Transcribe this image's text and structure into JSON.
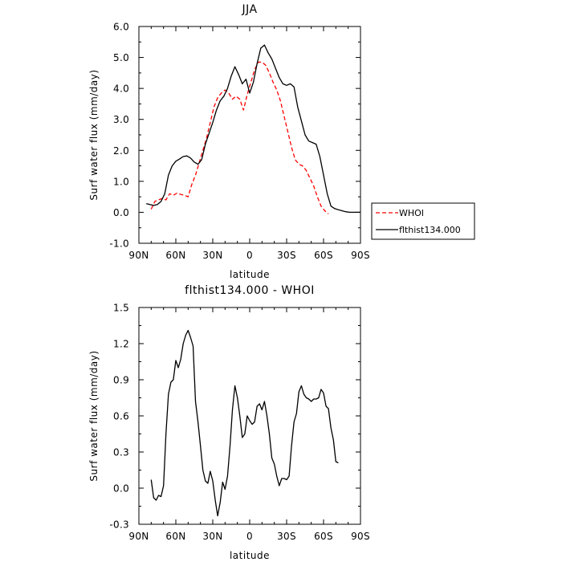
{
  "chart_data": [
    {
      "type": "line",
      "title": "JJA",
      "xlabel": "latitude",
      "ylabel": "Surf water flux (mm/day)",
      "xlim": [
        90,
        -90
      ],
      "ylim": [
        -1.0,
        6.0
      ],
      "xticks": [
        90,
        60,
        30,
        0,
        -30,
        -60,
        -90
      ],
      "xtick_labels": [
        "90N",
        "60N",
        "30N",
        "0",
        "30S",
        "60S",
        "90S"
      ],
      "yticks": [
        -1.0,
        0.0,
        1.0,
        2.0,
        3.0,
        4.0,
        5.0,
        6.0
      ],
      "ytick_labels": [
        "-1.0",
        "0.0",
        "1.0",
        "2.0",
        "3.0",
        "4.0",
        "5.0",
        "6.0"
      ],
      "grid": false,
      "legend_position": "right",
      "series": [
        {
          "name": "WHOI",
          "color": "#ff0000",
          "style": "dashed",
          "x": [
            80,
            77,
            74,
            71,
            68,
            65,
            62,
            59,
            56,
            53,
            50,
            47,
            44,
            41,
            38,
            35,
            32,
            29,
            26,
            23,
            20,
            17,
            14,
            11,
            8,
            5,
            2,
            -1,
            -4,
            -7,
            -10,
            -13,
            -16,
            -19,
            -22,
            -25,
            -28,
            -31,
            -34,
            -37,
            -40,
            -43,
            -46,
            -49,
            -52,
            -55,
            -58,
            -61,
            -64,
            -67,
            -70,
            -73
          ],
          "y": [
            0.1,
            0.35,
            0.4,
            0.45,
            0.4,
            0.6,
            0.55,
            0.62,
            0.58,
            0.55,
            0.5,
            0.9,
            1.2,
            1.6,
            2.0,
            2.4,
            2.9,
            3.4,
            3.7,
            3.85,
            3.95,
            3.85,
            3.65,
            3.75,
            3.65,
            3.3,
            3.8,
            4.2,
            4.6,
            4.85,
            4.85,
            4.75,
            4.5,
            4.2,
            3.95,
            3.6,
            3.1,
            2.6,
            2.1,
            1.7,
            1.55,
            1.5,
            1.35,
            1.1,
            0.85,
            0.5,
            0.2,
            0.05,
            -0.05,
            null,
            null,
            null
          ]
        },
        {
          "name": "flthist134.000",
          "color": "#000000",
          "style": "solid",
          "x": [
            84,
            81,
            78,
            75,
            72,
            69,
            66,
            63,
            60,
            57,
            54,
            51,
            48,
            45,
            42,
            39,
            36,
            33,
            30,
            27,
            24,
            21,
            18,
            15,
            12,
            9,
            6,
            3,
            0,
            -3,
            -6,
            -9,
            -12,
            -15,
            -18,
            -21,
            -24,
            -27,
            -30,
            -33,
            -36,
            -39,
            -42,
            -45,
            -48,
            -51,
            -54,
            -57,
            -60,
            -63,
            -66,
            -69,
            -72,
            -75,
            -78,
            -81,
            -84,
            -87,
            -90
          ],
          "y": [
            0.28,
            0.25,
            0.22,
            0.25,
            0.35,
            0.6,
            1.2,
            1.5,
            1.65,
            1.72,
            1.8,
            1.82,
            1.75,
            1.62,
            1.55,
            1.7,
            2.2,
            2.55,
            2.9,
            3.3,
            3.6,
            3.75,
            4.0,
            4.4,
            4.7,
            4.45,
            4.15,
            4.3,
            3.85,
            4.2,
            4.8,
            5.3,
            5.4,
            5.15,
            4.95,
            4.65,
            4.35,
            4.15,
            4.1,
            4.15,
            4.05,
            3.4,
            2.95,
            2.5,
            2.3,
            2.25,
            2.2,
            1.8,
            1.2,
            0.6,
            0.2,
            0.12,
            0.08,
            0.05,
            0.02,
            0.0,
            0.0,
            0.0,
            0.0
          ]
        }
      ]
    },
    {
      "type": "line",
      "title": "flthist134.000 - WHOI",
      "xlabel": "latitude",
      "ylabel": "Surf water flux (mm/day)",
      "xlim": [
        90,
        -90
      ],
      "ylim": [
        -0.3,
        1.5
      ],
      "xticks": [
        90,
        60,
        30,
        0,
        -30,
        -60,
        -90
      ],
      "xtick_labels": [
        "90N",
        "60N",
        "30N",
        "0",
        "30S",
        "60S",
        "90S"
      ],
      "yticks": [
        -0.3,
        0.0,
        0.3,
        0.6,
        0.9,
        1.2,
        1.5
      ],
      "ytick_labels": [
        "-0.3",
        "0.0",
        "0.3",
        "0.6",
        "0.9",
        "1.2",
        "1.5"
      ],
      "grid": false,
      "series": [
        {
          "color": "#000000",
          "style": "solid",
          "x": [
            80,
            78,
            76,
            74,
            72,
            70,
            68,
            66,
            64,
            62,
            60,
            58,
            56,
            54,
            52,
            50,
            48,
            46,
            44,
            42,
            40,
            38,
            36,
            34,
            32,
            30,
            28,
            26,
            24,
            22,
            20,
            18,
            16,
            14,
            12,
            10,
            8,
            6,
            4,
            2,
            0,
            -2,
            -4,
            -6,
            -8,
            -10,
            -12,
            -14,
            -16,
            -18,
            -20,
            -22,
            -24,
            -26,
            -28,
            -30,
            -32,
            -34,
            -36,
            -38,
            -40,
            -42,
            -44,
            -46,
            -48,
            -50,
            -52,
            -54,
            -56,
            -58,
            -60,
            -62,
            -64,
            -66,
            -68,
            -70,
            -72
          ],
          "y": [
            0.07,
            -0.08,
            -0.1,
            -0.06,
            -0.07,
            0.02,
            0.45,
            0.78,
            0.88,
            0.9,
            1.06,
            1.0,
            1.07,
            1.2,
            1.27,
            1.31,
            1.25,
            1.18,
            0.72,
            0.55,
            0.35,
            0.15,
            0.06,
            0.04,
            0.14,
            0.06,
            -0.1,
            -0.23,
            -0.12,
            0.05,
            -0.01,
            0.1,
            0.35,
            0.65,
            0.85,
            0.75,
            0.6,
            0.42,
            0.45,
            0.6,
            0.56,
            0.53,
            0.55,
            0.68,
            0.7,
            0.65,
            0.72,
            0.6,
            0.45,
            0.25,
            0.2,
            0.1,
            0.02,
            0.08,
            0.08,
            0.07,
            0.1,
            0.35,
            0.55,
            0.62,
            0.8,
            0.85,
            0.78,
            0.75,
            0.74,
            0.72,
            0.74,
            0.74,
            0.75,
            0.82,
            0.79,
            0.68,
            0.66,
            0.5,
            0.4,
            0.22,
            0.21
          ]
        }
      ]
    }
  ]
}
